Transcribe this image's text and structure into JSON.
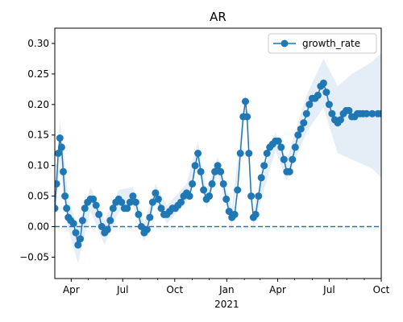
{
  "chart_data": {
    "type": "line",
    "title": "AR",
    "xlabel": "",
    "ylabel": "",
    "x_year_label": "2021",
    "x_tick_labels": [
      "Apr",
      "Jul",
      "Oct",
      "Jan",
      "Apr",
      "Jul",
      "Oct"
    ],
    "x_tick_dates": [
      "2020-04-01",
      "2020-07-01",
      "2020-10-01",
      "2021-01-01",
      "2021-04-01",
      "2021-07-01",
      "2021-10-01"
    ],
    "x_range": [
      "2020-03-03",
      "2021-10-01"
    ],
    "ylim": [
      -0.085,
      0.325
    ],
    "y_ticks": [
      -0.05,
      0.0,
      0.05,
      0.1,
      0.15,
      0.2,
      0.25,
      0.3
    ],
    "y_tick_labels": [
      "−0.05",
      "0.00",
      "0.05",
      "0.10",
      "0.15",
      "0.20",
      "0.25",
      "0.30"
    ],
    "reference_line": {
      "y": 0.0,
      "style": "dashed",
      "color": "#1f77b4"
    },
    "legend": {
      "position": "top-right",
      "entries": [
        "growth_rate"
      ]
    },
    "grid": false,
    "colors": {
      "series": "#1f77b4",
      "band": "#dce8f4"
    },
    "series": [
      {
        "name": "growth_rate",
        "marker": "circle",
        "points": [
          [
            "2020-03-03",
            0.03
          ],
          [
            "2020-03-06",
            0.07
          ],
          [
            "2020-03-09",
            0.12
          ],
          [
            "2020-03-12",
            0.145
          ],
          [
            "2020-03-15",
            0.13
          ],
          [
            "2020-03-18",
            0.09
          ],
          [
            "2020-03-21",
            0.05
          ],
          [
            "2020-03-24",
            0.03
          ],
          [
            "2020-03-27",
            0.015
          ],
          [
            "2020-03-31",
            0.01
          ],
          [
            "2020-04-05",
            0.005
          ],
          [
            "2020-04-09",
            -0.01
          ],
          [
            "2020-04-13",
            -0.03
          ],
          [
            "2020-04-17",
            -0.02
          ],
          [
            "2020-04-21",
            0.01
          ],
          [
            "2020-04-25",
            0.03
          ],
          [
            "2020-04-30",
            0.04
          ],
          [
            "2020-05-05",
            0.045
          ],
          [
            "2020-05-10",
            0.045
          ],
          [
            "2020-05-15",
            0.035
          ],
          [
            "2020-05-20",
            0.02
          ],
          [
            "2020-05-25",
            0.0
          ],
          [
            "2020-05-30",
            -0.01
          ],
          [
            "2020-06-04",
            -0.005
          ],
          [
            "2020-06-09",
            0.01
          ],
          [
            "2020-06-14",
            0.03
          ],
          [
            "2020-06-19",
            0.04
          ],
          [
            "2020-06-24",
            0.045
          ],
          [
            "2020-06-29",
            0.04
          ],
          [
            "2020-07-04",
            0.03
          ],
          [
            "2020-07-09",
            0.03
          ],
          [
            "2020-07-14",
            0.04
          ],
          [
            "2020-07-19",
            0.05
          ],
          [
            "2020-07-24",
            0.04
          ],
          [
            "2020-07-29",
            0.02
          ],
          [
            "2020-08-03",
            0.0
          ],
          [
            "2020-08-08",
            -0.01
          ],
          [
            "2020-08-13",
            -0.005
          ],
          [
            "2020-08-18",
            0.015
          ],
          [
            "2020-08-23",
            0.04
          ],
          [
            "2020-08-28",
            0.055
          ],
          [
            "2020-09-02",
            0.045
          ],
          [
            "2020-09-07",
            0.03
          ],
          [
            "2020-09-12",
            0.02
          ],
          [
            "2020-09-17",
            0.02
          ],
          [
            "2020-09-22",
            0.025
          ],
          [
            "2020-09-27",
            0.03
          ],
          [
            "2020-10-02",
            0.03
          ],
          [
            "2020-10-07",
            0.035
          ],
          [
            "2020-10-12",
            0.04
          ],
          [
            "2020-10-17",
            0.05
          ],
          [
            "2020-10-22",
            0.055
          ],
          [
            "2020-10-27",
            0.05
          ],
          [
            "2020-11-01",
            0.07
          ],
          [
            "2020-11-06",
            0.1
          ],
          [
            "2020-11-11",
            0.12
          ],
          [
            "2020-11-16",
            0.09
          ],
          [
            "2020-11-21",
            0.06
          ],
          [
            "2020-11-26",
            0.045
          ],
          [
            "2020-12-01",
            0.05
          ],
          [
            "2020-12-06",
            0.07
          ],
          [
            "2020-12-11",
            0.09
          ],
          [
            "2020-12-16",
            0.1
          ],
          [
            "2020-12-21",
            0.09
          ],
          [
            "2020-12-26",
            0.07
          ],
          [
            "2020-12-31",
            0.045
          ],
          [
            "2021-01-05",
            0.025
          ],
          [
            "2021-01-10",
            0.015
          ],
          [
            "2021-01-15",
            0.02
          ],
          [
            "2021-01-20",
            0.06
          ],
          [
            "2021-01-25",
            0.12
          ],
          [
            "2021-01-30",
            0.18
          ],
          [
            "2021-02-03",
            0.205
          ],
          [
            "2021-02-06",
            0.18
          ],
          [
            "2021-02-09",
            0.12
          ],
          [
            "2021-02-13",
            0.05
          ],
          [
            "2021-02-17",
            0.015
          ],
          [
            "2021-02-21",
            0.02
          ],
          [
            "2021-02-26",
            0.05
          ],
          [
            "2021-03-03",
            0.08
          ],
          [
            "2021-03-08",
            0.1
          ],
          [
            "2021-03-13",
            0.12
          ],
          [
            "2021-03-18",
            0.13
          ],
          [
            "2021-03-23",
            0.135
          ],
          [
            "2021-03-28",
            0.14
          ],
          [
            "2021-04-02",
            0.14
          ],
          [
            "2021-04-07",
            0.13
          ],
          [
            "2021-04-12",
            0.11
          ],
          [
            "2021-04-17",
            0.09
          ],
          [
            "2021-04-22",
            0.09
          ],
          [
            "2021-04-27",
            0.11
          ],
          [
            "2021-05-02",
            0.13
          ],
          [
            "2021-05-07",
            0.15
          ],
          [
            "2021-05-12",
            0.16
          ],
          [
            "2021-05-17",
            0.17
          ],
          [
            "2021-05-22",
            0.185
          ],
          [
            "2021-05-27",
            0.2
          ],
          [
            "2021-06-01",
            0.21
          ],
          [
            "2021-06-06",
            0.21
          ],
          [
            "2021-06-11",
            0.215
          ],
          [
            "2021-06-16",
            0.23
          ],
          [
            "2021-06-21",
            0.235
          ],
          [
            "2021-06-26",
            0.22
          ],
          [
            "2021-07-01",
            0.2
          ],
          [
            "2021-07-06",
            0.185
          ],
          [
            "2021-07-11",
            0.175
          ],
          [
            "2021-07-16",
            0.17
          ],
          [
            "2021-07-21",
            0.175
          ],
          [
            "2021-07-26",
            0.185
          ],
          [
            "2021-07-31",
            0.19
          ],
          [
            "2021-08-05",
            0.19
          ],
          [
            "2021-08-10",
            0.18
          ],
          [
            "2021-08-15",
            0.18
          ],
          [
            "2021-08-20",
            0.185
          ],
          [
            "2021-08-25",
            0.185
          ],
          [
            "2021-08-30",
            0.185
          ],
          [
            "2021-09-05",
            0.185
          ],
          [
            "2021-09-15",
            0.185
          ],
          [
            "2021-09-25",
            0.185
          ],
          [
            "2021-10-01",
            0.185
          ]
        ],
        "band_upper": [
          [
            "2020-03-03",
            0.06
          ],
          [
            "2020-03-12",
            0.175
          ],
          [
            "2020-03-18",
            0.13
          ],
          [
            "2020-03-27",
            0.045
          ],
          [
            "2020-04-13",
            0.0
          ],
          [
            "2020-05-05",
            0.065
          ],
          [
            "2020-05-30",
            0.01
          ],
          [
            "2020-06-24",
            0.06
          ],
          [
            "2020-07-19",
            0.065
          ],
          [
            "2020-08-08",
            0.005
          ],
          [
            "2020-08-28",
            0.07
          ],
          [
            "2020-09-17",
            0.035
          ],
          [
            "2020-10-22",
            0.07
          ],
          [
            "2020-11-11",
            0.14
          ],
          [
            "2020-11-26",
            0.06
          ],
          [
            "2020-12-16",
            0.115
          ],
          [
            "2021-01-10",
            0.03
          ],
          [
            "2021-02-03",
            0.22
          ],
          [
            "2021-02-17",
            0.03
          ],
          [
            "2021-03-28",
            0.155
          ],
          [
            "2021-04-17",
            0.11
          ],
          [
            "2021-05-22",
            0.215
          ],
          [
            "2021-06-21",
            0.275
          ],
          [
            "2021-07-16",
            0.23
          ],
          [
            "2021-08-10",
            0.25
          ],
          [
            "2021-09-15",
            0.27
          ],
          [
            "2021-10-01",
            0.285
          ]
        ],
        "band_lower": [
          [
            "2020-03-03",
            0.005
          ],
          [
            "2020-03-12",
            0.11
          ],
          [
            "2020-03-18",
            0.05
          ],
          [
            "2020-03-27",
            -0.005
          ],
          [
            "2020-04-13",
            -0.06
          ],
          [
            "2020-05-05",
            0.025
          ],
          [
            "2020-05-30",
            -0.03
          ],
          [
            "2020-06-24",
            0.025
          ],
          [
            "2020-07-19",
            0.035
          ],
          [
            "2020-08-08",
            -0.025
          ],
          [
            "2020-08-28",
            0.04
          ],
          [
            "2020-09-17",
            0.005
          ],
          [
            "2020-10-22",
            0.04
          ],
          [
            "2020-11-11",
            0.1
          ],
          [
            "2020-11-26",
            0.03
          ],
          [
            "2020-12-16",
            0.085
          ],
          [
            "2021-01-10",
            0.0
          ],
          [
            "2021-02-03",
            0.19
          ],
          [
            "2021-02-17",
            0.0
          ],
          [
            "2021-03-28",
            0.125
          ],
          [
            "2021-04-17",
            0.075
          ],
          [
            "2021-05-22",
            0.155
          ],
          [
            "2021-06-21",
            0.195
          ],
          [
            "2021-07-16",
            0.12
          ],
          [
            "2021-08-10",
            0.11
          ],
          [
            "2021-09-15",
            0.095
          ],
          [
            "2021-10-01",
            0.08
          ]
        ]
      }
    ]
  }
}
